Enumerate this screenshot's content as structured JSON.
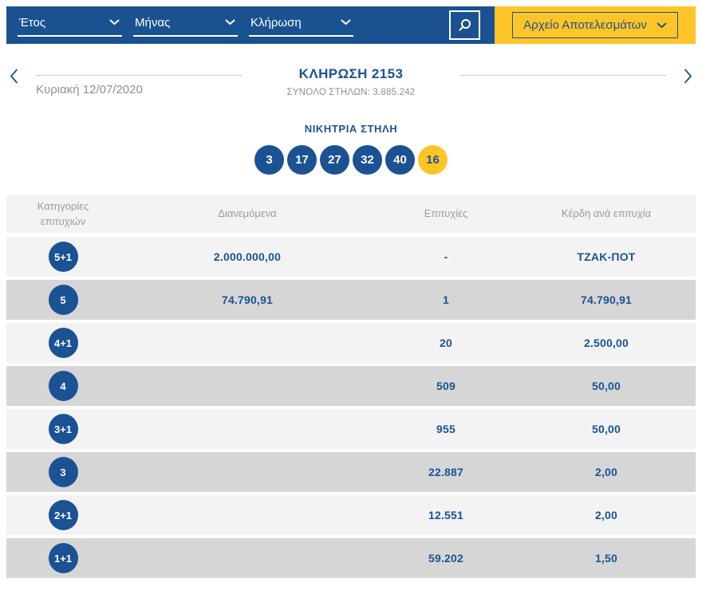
{
  "colors": {
    "brand_blue": "#1A5291",
    "text_blue": "#1B5294",
    "brand_yellow": "#FFC528",
    "row_light": "#F3F3F3",
    "row_dark": "#D6D6D6",
    "muted_gray": "#8F8F8F"
  },
  "filter_bar": {
    "dropdowns": [
      {
        "label": "Έτος"
      },
      {
        "label": "Μήνας"
      },
      {
        "label": "Κλήρωση"
      }
    ],
    "search_icon": "magnifier-icon",
    "archive_button": {
      "label": "Αρχείο Αποτελεσμάτων"
    }
  },
  "draw_header": {
    "title": "ΚΛΗΡΩΣΗ 2153",
    "subtitle": "ΣΥΝΟΛΟ ΣΤΗΛΩΝ: 3.885.242",
    "date": "Κυριακή 12/07/2020"
  },
  "winning": {
    "title": "ΝΙΚΗΤΡΙΑ ΣΤΗΛΗ",
    "numbers": [
      "3",
      "17",
      "27",
      "32",
      "40"
    ],
    "bonus": "16"
  },
  "results_table": {
    "headers": [
      "Κατηγορίες επιτυχιών",
      "Διανεμόμενα",
      "Επιτυχίες",
      "Κέρδη ανά επιτυχία"
    ],
    "rows": [
      {
        "category": "5+1",
        "distributed": "2.000.000,00",
        "winners": "-",
        "payout": "ΤΖΑΚ-ΠΟΤ"
      },
      {
        "category": "5",
        "distributed": "74.790,91",
        "winners": "1",
        "payout": "74.790,91"
      },
      {
        "category": "4+1",
        "distributed": "",
        "winners": "20",
        "payout": "2.500,00"
      },
      {
        "category": "4",
        "distributed": "",
        "winners": "509",
        "payout": "50,00"
      },
      {
        "category": "3+1",
        "distributed": "",
        "winners": "955",
        "payout": "50,00"
      },
      {
        "category": "3",
        "distributed": "",
        "winners": "22.887",
        "payout": "2,00"
      },
      {
        "category": "2+1",
        "distributed": "",
        "winners": "12.551",
        "payout": "2,00"
      },
      {
        "category": "1+1",
        "distributed": "",
        "winners": "59.202",
        "payout": "1,50"
      }
    ]
  }
}
